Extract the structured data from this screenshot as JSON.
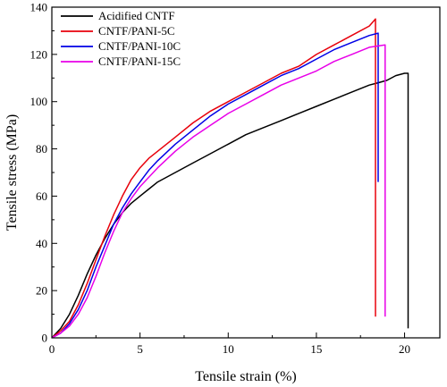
{
  "chart_data": {
    "type": "line",
    "xlabel": "Tensile strain (%)",
    "ylabel": "Tensile stress (MPa)",
    "xlim": [
      0,
      22
    ],
    "ylim": [
      0,
      140
    ],
    "x_ticks": [
      0,
      5,
      10,
      15,
      20
    ],
    "y_ticks": [
      0,
      20,
      40,
      60,
      80,
      100,
      120,
      140
    ],
    "x_tick_labels": [
      "0",
      "5",
      "10",
      "15",
      "20"
    ],
    "y_tick_labels": [
      "0",
      "20",
      "40",
      "60",
      "80",
      "100",
      "120",
      "140"
    ],
    "legend_position": "top-left",
    "grid": false,
    "series": [
      {
        "name": "Acidified CNTF",
        "color": "#000000",
        "x": [
          0,
          0.5,
          1,
          1.5,
          2,
          2.5,
          3,
          3.5,
          4,
          4.5,
          5,
          5.5,
          6,
          7,
          8,
          9,
          10,
          11,
          12,
          13,
          14,
          15,
          16,
          17,
          18,
          18.5,
          19,
          19.5,
          20,
          20.2,
          20.2
        ],
        "y": [
          0,
          4,
          10,
          18,
          27,
          35,
          42,
          48,
          53,
          57,
          60,
          63,
          66,
          70,
          74,
          78,
          82,
          86,
          89,
          92,
          95,
          98,
          101,
          104,
          107,
          108,
          109,
          111,
          112,
          112,
          4
        ]
      },
      {
        "name": "CNTF/PANI-5C",
        "color": "#e8000b",
        "x": [
          0,
          0.5,
          1,
          1.5,
          2,
          2.5,
          3,
          3.5,
          4,
          4.5,
          5,
          5.5,
          6,
          7,
          8,
          9,
          10,
          11,
          12,
          13,
          14,
          15,
          16,
          17,
          18,
          18.35,
          18.35
        ],
        "y": [
          0,
          3,
          7,
          14,
          23,
          33,
          43,
          52,
          60,
          67,
          72,
          76,
          79,
          85,
          91,
          96,
          100,
          104,
          108,
          112,
          115,
          120,
          124,
          128,
          132,
          135,
          9
        ]
      },
      {
        "name": "CNTF/PANI-10C",
        "color": "#0000e6",
        "x": [
          0,
          0.5,
          1,
          1.5,
          2,
          2.5,
          3,
          3.5,
          4,
          4.5,
          5,
          5.5,
          6,
          7,
          8,
          9,
          10,
          11,
          12,
          13,
          14,
          15,
          16,
          17,
          18,
          18.5,
          18.5
        ],
        "y": [
          0,
          2,
          6,
          12,
          20,
          30,
          39,
          48,
          55,
          61,
          66,
          71,
          75,
          82,
          88,
          94,
          99,
          103,
          107,
          111,
          114,
          118,
          122,
          125,
          128,
          129,
          66
        ]
      },
      {
        "name": "CNTF/PANI-15C",
        "color": "#e800e8",
        "x": [
          0,
          0.5,
          1,
          1.5,
          2,
          2.5,
          3,
          3.5,
          4,
          4.5,
          5,
          5.5,
          6,
          7,
          8,
          9,
          10,
          11,
          12,
          13,
          14,
          15,
          16,
          17,
          18,
          18.9,
          18.9
        ],
        "y": [
          0,
          2,
          5,
          10,
          17,
          26,
          36,
          45,
          53,
          59,
          64,
          68,
          72,
          79,
          85,
          90,
          95,
          99,
          103,
          107,
          110,
          113,
          117,
          120,
          123,
          124,
          9
        ]
      }
    ]
  }
}
